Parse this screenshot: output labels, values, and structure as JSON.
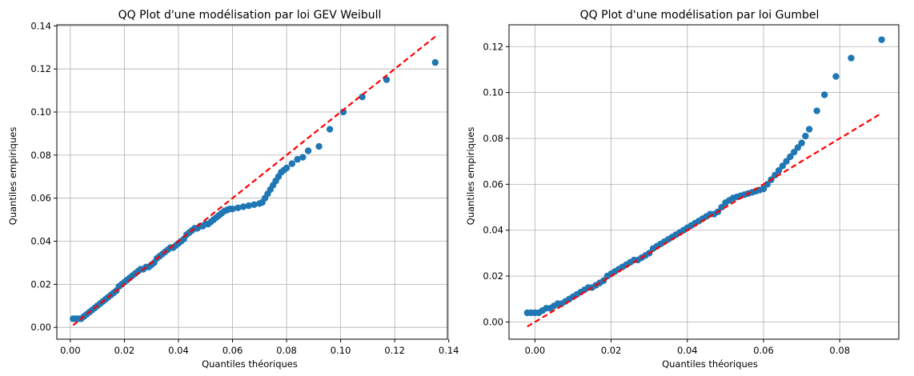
{
  "colors": {
    "points": "#1f77b4",
    "reference_line": "#ff0000",
    "grid": "#b0b0b0"
  },
  "chart_data": [
    {
      "type": "scatter",
      "title": "QQ Plot d'une modélisation par loi GEV Weibull",
      "xlabel": "Quantiles théoriques",
      "ylabel": "Quantiles empiriques",
      "xlim": [
        -0.005,
        0.1395
      ],
      "ylim": [
        -0.0055,
        0.1405
      ],
      "xticks": [
        "0.00",
        "0.02",
        "0.04",
        "0.06",
        "0.08",
        "0.10",
        "0.12",
        "0.14"
      ],
      "yticks": [
        "0.00",
        "0.02",
        "0.04",
        "0.06",
        "0.08",
        "0.10",
        "0.12",
        "0.14"
      ],
      "grid": true,
      "reference_line": {
        "style": "dashed",
        "points": [
          [
            0.001,
            0.001
          ],
          [
            0.135,
            0.135
          ]
        ]
      },
      "points": [
        [
          0.001,
          0.004
        ],
        [
          0.002,
          0.004
        ],
        [
          0.003,
          0.004
        ],
        [
          0.004,
          0.004
        ],
        [
          0.005,
          0.005
        ],
        [
          0.006,
          0.006
        ],
        [
          0.007,
          0.007
        ],
        [
          0.008,
          0.008
        ],
        [
          0.009,
          0.009
        ],
        [
          0.01,
          0.01
        ],
        [
          0.011,
          0.011
        ],
        [
          0.012,
          0.012
        ],
        [
          0.013,
          0.013
        ],
        [
          0.014,
          0.014
        ],
        [
          0.015,
          0.015
        ],
        [
          0.016,
          0.016
        ],
        [
          0.017,
          0.017
        ],
        [
          0.018,
          0.019
        ],
        [
          0.019,
          0.02
        ],
        [
          0.02,
          0.021
        ],
        [
          0.021,
          0.022
        ],
        [
          0.022,
          0.023
        ],
        [
          0.023,
          0.024
        ],
        [
          0.024,
          0.025
        ],
        [
          0.025,
          0.026
        ],
        [
          0.026,
          0.027
        ],
        [
          0.027,
          0.027
        ],
        [
          0.028,
          0.028
        ],
        [
          0.029,
          0.028
        ],
        [
          0.03,
          0.029
        ],
        [
          0.031,
          0.03
        ],
        [
          0.032,
          0.032
        ],
        [
          0.033,
          0.033
        ],
        [
          0.034,
          0.034
        ],
        [
          0.035,
          0.035
        ],
        [
          0.036,
          0.036
        ],
        [
          0.037,
          0.037
        ],
        [
          0.038,
          0.037
        ],
        [
          0.039,
          0.038
        ],
        [
          0.04,
          0.039
        ],
        [
          0.041,
          0.04
        ],
        [
          0.042,
          0.041
        ],
        [
          0.043,
          0.043
        ],
        [
          0.044,
          0.044
        ],
        [
          0.045,
          0.045
        ],
        [
          0.046,
          0.046
        ],
        [
          0.047,
          0.046
        ],
        [
          0.048,
          0.047
        ],
        [
          0.049,
          0.047
        ],
        [
          0.05,
          0.048
        ],
        [
          0.051,
          0.048
        ],
        [
          0.052,
          0.049
        ],
        [
          0.053,
          0.05
        ],
        [
          0.054,
          0.051
        ],
        [
          0.055,
          0.052
        ],
        [
          0.056,
          0.053
        ],
        [
          0.057,
          0.054
        ],
        [
          0.058,
          0.0545
        ],
        [
          0.059,
          0.055
        ],
        [
          0.06,
          0.055
        ],
        [
          0.062,
          0.0555
        ],
        [
          0.064,
          0.056
        ],
        [
          0.066,
          0.0565
        ],
        [
          0.068,
          0.057
        ],
        [
          0.07,
          0.0575
        ],
        [
          0.071,
          0.058
        ],
        [
          0.072,
          0.06
        ],
        [
          0.073,
          0.062
        ],
        [
          0.074,
          0.064
        ],
        [
          0.075,
          0.066
        ],
        [
          0.076,
          0.068
        ],
        [
          0.077,
          0.07
        ],
        [
          0.078,
          0.072
        ],
        [
          0.079,
          0.073
        ],
        [
          0.08,
          0.074
        ],
        [
          0.082,
          0.076
        ],
        [
          0.084,
          0.078
        ],
        [
          0.086,
          0.079
        ],
        [
          0.088,
          0.082
        ],
        [
          0.092,
          0.084
        ],
        [
          0.096,
          0.092
        ],
        [
          0.101,
          0.1
        ],
        [
          0.108,
          0.107
        ],
        [
          0.117,
          0.115
        ],
        [
          0.135,
          0.123
        ]
      ]
    },
    {
      "type": "scatter",
      "title": "QQ Plot d'une modélisation par loi Gumbel",
      "xlabel": "Quantiles théoriques",
      "ylabel": "Quantiles empiriques",
      "xlim": [
        -0.0068,
        0.0955
      ],
      "ylim": [
        -0.0075,
        0.1295
      ],
      "xticks": [
        "0.00",
        "0.02",
        "0.04",
        "0.06",
        "0.08"
      ],
      "yticks": [
        "0.00",
        "0.02",
        "0.04",
        "0.06",
        "0.08",
        "0.10",
        "0.12"
      ],
      "grid": true,
      "reference_line": {
        "style": "dashed",
        "points": [
          [
            -0.002,
            -0.002
          ],
          [
            0.091,
            0.091
          ]
        ]
      },
      "points": [
        [
          -0.002,
          0.004
        ],
        [
          -0.001,
          0.004
        ],
        [
          0.0,
          0.004
        ],
        [
          0.001,
          0.004
        ],
        [
          0.002,
          0.005
        ],
        [
          0.003,
          0.006
        ],
        [
          0.004,
          0.006
        ],
        [
          0.005,
          0.007
        ],
        [
          0.006,
          0.008
        ],
        [
          0.007,
          0.008
        ],
        [
          0.008,
          0.009
        ],
        [
          0.009,
          0.01
        ],
        [
          0.01,
          0.011
        ],
        [
          0.011,
          0.012
        ],
        [
          0.012,
          0.013
        ],
        [
          0.013,
          0.014
        ],
        [
          0.014,
          0.015
        ],
        [
          0.015,
          0.015
        ],
        [
          0.016,
          0.016
        ],
        [
          0.017,
          0.017
        ],
        [
          0.018,
          0.018
        ],
        [
          0.019,
          0.02
        ],
        [
          0.02,
          0.021
        ],
        [
          0.021,
          0.022
        ],
        [
          0.022,
          0.023
        ],
        [
          0.023,
          0.024
        ],
        [
          0.024,
          0.025
        ],
        [
          0.025,
          0.026
        ],
        [
          0.026,
          0.027
        ],
        [
          0.027,
          0.027
        ],
        [
          0.028,
          0.028
        ],
        [
          0.029,
          0.029
        ],
        [
          0.03,
          0.03
        ],
        [
          0.031,
          0.032
        ],
        [
          0.032,
          0.033
        ],
        [
          0.033,
          0.034
        ],
        [
          0.034,
          0.035
        ],
        [
          0.035,
          0.036
        ],
        [
          0.036,
          0.037
        ],
        [
          0.037,
          0.038
        ],
        [
          0.038,
          0.039
        ],
        [
          0.039,
          0.04
        ],
        [
          0.04,
          0.041
        ],
        [
          0.041,
          0.042
        ],
        [
          0.042,
          0.043
        ],
        [
          0.043,
          0.044
        ],
        [
          0.044,
          0.045
        ],
        [
          0.045,
          0.046
        ],
        [
          0.046,
          0.047
        ],
        [
          0.047,
          0.047
        ],
        [
          0.048,
          0.048
        ],
        [
          0.049,
          0.05
        ],
        [
          0.05,
          0.052
        ],
        [
          0.051,
          0.053
        ],
        [
          0.052,
          0.054
        ],
        [
          0.053,
          0.0545
        ],
        [
          0.054,
          0.055
        ],
        [
          0.055,
          0.0555
        ],
        [
          0.056,
          0.056
        ],
        [
          0.057,
          0.0565
        ],
        [
          0.058,
          0.057
        ],
        [
          0.059,
          0.0575
        ],
        [
          0.06,
          0.058
        ],
        [
          0.061,
          0.06
        ],
        [
          0.062,
          0.062
        ],
        [
          0.063,
          0.064
        ],
        [
          0.064,
          0.066
        ],
        [
          0.065,
          0.068
        ],
        [
          0.066,
          0.07
        ],
        [
          0.067,
          0.072
        ],
        [
          0.068,
          0.074
        ],
        [
          0.069,
          0.076
        ],
        [
          0.07,
          0.078
        ],
        [
          0.071,
          0.081
        ],
        [
          0.072,
          0.084
        ],
        [
          0.074,
          0.092
        ],
        [
          0.076,
          0.099
        ],
        [
          0.079,
          0.107
        ],
        [
          0.083,
          0.115
        ],
        [
          0.091,
          0.123
        ]
      ]
    }
  ]
}
